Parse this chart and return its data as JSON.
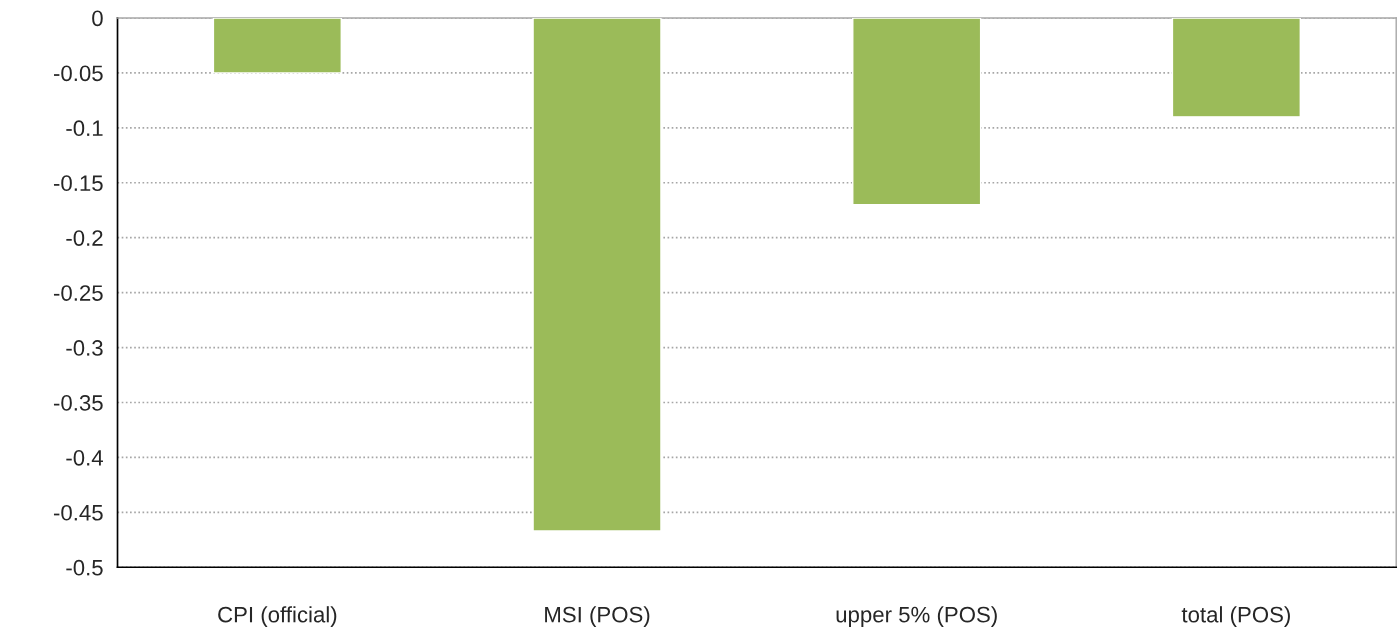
{
  "chart_data": {
    "type": "bar",
    "categories": [
      "CPI (official)",
      "MSI (POS)",
      "upper 5% (POS)",
      "total (POS)"
    ],
    "values": [
      -0.05,
      -0.467,
      -0.17,
      -0.09
    ],
    "color": "#9bbb59",
    "ylim": [
      -0.5,
      0
    ],
    "yticks": [
      -0.5,
      -0.45,
      -0.4,
      -0.35,
      -0.3,
      -0.25,
      -0.2,
      -0.15,
      -0.1,
      -0.05,
      0
    ],
    "grid": "y",
    "legend": false
  }
}
